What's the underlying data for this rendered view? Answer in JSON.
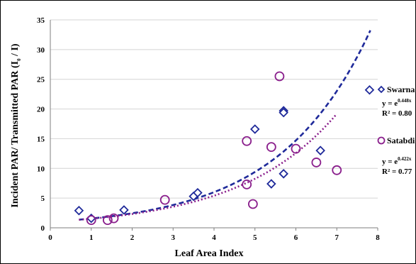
{
  "chart_data": {
    "type": "scatter",
    "xlabel": "Leaf Area Index",
    "ylabel": "Incident PAR/ Transmitted PAR (I",
    "ylabel_sub": "0",
    "ylabel_tail": " / I)",
    "xlim": [
      0,
      8
    ],
    "ylim": [
      0,
      35
    ],
    "xticks": [
      0,
      1,
      2,
      3,
      4,
      5,
      6,
      7,
      8
    ],
    "yticks": [
      0,
      5,
      10,
      15,
      20,
      25,
      30,
      35
    ],
    "grid": true,
    "legend_position": "right",
    "series": [
      {
        "name": "Swarna",
        "marker": "diamond",
        "color": "#1f2a9a",
        "trend_color": "#1f2a9a",
        "points": [
          [
            0.7,
            2.9
          ],
          [
            1.0,
            1.6
          ],
          [
            1.8,
            3.0
          ],
          [
            3.5,
            5.3
          ],
          [
            3.6,
            5.9
          ],
          [
            5.0,
            16.6
          ],
          [
            5.4,
            7.4
          ],
          [
            5.7,
            19.7
          ],
          [
            5.7,
            19.4
          ],
          [
            5.7,
            9.1
          ],
          [
            6.6,
            13.0
          ],
          [
            7.8,
            23.2
          ]
        ],
        "trend": {
          "a": 1.0,
          "b": 0.448,
          "x_from": 0.7,
          "x_to": 7.82
        },
        "equation": "y = e",
        "equation_exp": "0.448x",
        "r2": "R² = 0.80"
      },
      {
        "name": "Satabdi",
        "marker": "circle",
        "color": "#8a1f8c",
        "trend_color": "#8a1f8c",
        "points": [
          [
            1.0,
            1.3
          ],
          [
            1.4,
            1.3
          ],
          [
            1.55,
            1.6
          ],
          [
            2.8,
            4.7
          ],
          [
            4.8,
            14.6
          ],
          [
            4.8,
            7.3
          ],
          [
            4.95,
            4.0
          ],
          [
            5.4,
            13.6
          ],
          [
            5.6,
            25.5
          ],
          [
            6.0,
            13.3
          ],
          [
            6.5,
            11.0
          ],
          [
            7.0,
            9.7
          ]
        ],
        "trend": {
          "a": 1.0,
          "b": 0.422,
          "x_from": 0.7,
          "x_to": 7.0
        },
        "equation": "y = e",
        "equation_exp": "0.422x",
        "r2": "R² = 0.77"
      }
    ]
  }
}
